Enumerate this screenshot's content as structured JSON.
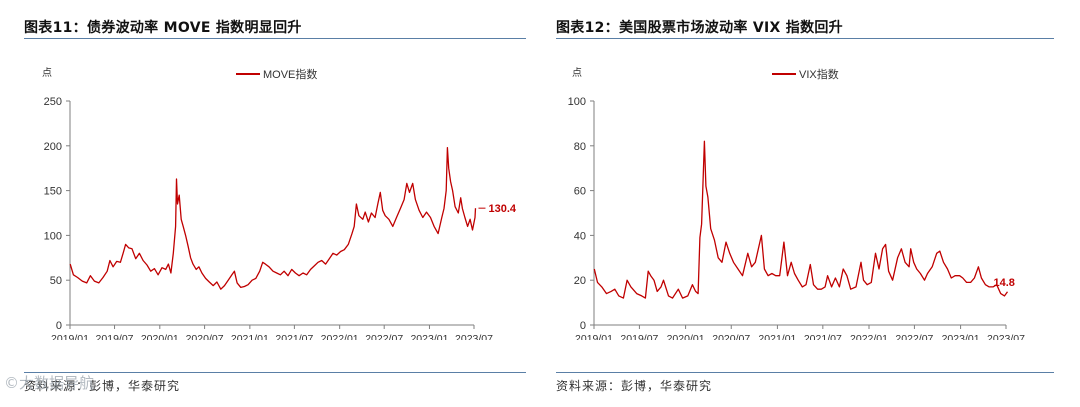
{
  "chart_data": [
    {
      "figure_label": "图表11：",
      "title": "债券波动率 MOVE 指数明显回升",
      "type": "line",
      "unit_label": "点",
      "legend": "MOVE指数",
      "series": [
        {
          "name": "MOVE指数"
        }
      ],
      "ylim": [
        0,
        250
      ],
      "yticks": [
        0,
        50,
        100,
        150,
        200,
        250
      ],
      "xlim": [
        "2019/01",
        "2023/07"
      ],
      "xticks": [
        "2019/01",
        "2019/07",
        "2020/01",
        "2020/07",
        "2021/01",
        "2021/07",
        "2022/01",
        "2022/07",
        "2023/01",
        "2023/07"
      ],
      "end_label": "130.4",
      "color": "#c00000",
      "points": [
        [
          "2019/01/02",
          68
        ],
        [
          "2019/01/15",
          56
        ],
        [
          "2019/02/01",
          53
        ],
        [
          "2019/02/20",
          49
        ],
        [
          "2019/03/10",
          47
        ],
        [
          "2019/03/25",
          55
        ],
        [
          "2019/04/10",
          49
        ],
        [
          "2019/04/28",
          47
        ],
        [
          "2019/05/15",
          53
        ],
        [
          "2019/06/01",
          60
        ],
        [
          "2019/06/12",
          72
        ],
        [
          "2019/06/25",
          65
        ],
        [
          "2019/07/10",
          71
        ],
        [
          "2019/07/25",
          70
        ],
        [
          "2019/08/05",
          80
        ],
        [
          "2019/08/15",
          90
        ],
        [
          "2019/08/28",
          86
        ],
        [
          "2019/09/10",
          85
        ],
        [
          "2019/09/25",
          74
        ],
        [
          "2019/10/10",
          80
        ],
        [
          "2019/10/25",
          72
        ],
        [
          "2019/11/10",
          67
        ],
        [
          "2019/11/25",
          60
        ],
        [
          "2019/12/10",
          63
        ],
        [
          "2019/12/25",
          56
        ],
        [
          "2020/01/10",
          64
        ],
        [
          "2020/01/25",
          62
        ],
        [
          "2020/02/05",
          68
        ],
        [
          "2020/02/15",
          58
        ],
        [
          "2020/02/25",
          80
        ],
        [
          "2020/03/05",
          110
        ],
        [
          "2020/03/09",
          163
        ],
        [
          "2020/03/13",
          135
        ],
        [
          "2020/03/20",
          145
        ],
        [
          "2020/03/28",
          118
        ],
        [
          "2020/04/05",
          110
        ],
        [
          "2020/04/15",
          100
        ],
        [
          "2020/04/25",
          88
        ],
        [
          "2020/05/05",
          75
        ],
        [
          "2020/05/15",
          68
        ],
        [
          "2020/05/28",
          62
        ],
        [
          "2020/06/08",
          65
        ],
        [
          "2020/06/20",
          58
        ],
        [
          "2020/07/05",
          52
        ],
        [
          "2020/07/20",
          48
        ],
        [
          "2020/08/05",
          44
        ],
        [
          "2020/08/20",
          48
        ],
        [
          "2020/09/05",
          40
        ],
        [
          "2020/09/20",
          44
        ],
        [
          "2020/10/05",
          50
        ],
        [
          "2020/10/20",
          56
        ],
        [
          "2020/10/30",
          60
        ],
        [
          "2020/11/10",
          47
        ],
        [
          "2020/11/25",
          42
        ],
        [
          "2020/12/10",
          43
        ],
        [
          "2020/12/25",
          45
        ],
        [
          "2021/01/10",
          50
        ],
        [
          "2021/01/25",
          52
        ],
        [
          "2021/02/10",
          60
        ],
        [
          "2021/02/22",
          70
        ],
        [
          "2021/03/05",
          68
        ],
        [
          "2021/03/20",
          65
        ],
        [
          "2021/04/05",
          60
        ],
        [
          "2021/04/20",
          58
        ],
        [
          "2021/05/05",
          56
        ],
        [
          "2021/05/20",
          60
        ],
        [
          "2021/06/05",
          55
        ],
        [
          "2021/06/20",
          62
        ],
        [
          "2021/07/05",
          58
        ],
        [
          "2021/07/20",
          55
        ],
        [
          "2021/08/05",
          58
        ],
        [
          "2021/08/20",
          56
        ],
        [
          "2021/09/05",
          62
        ],
        [
          "2021/09/20",
          66
        ],
        [
          "2021/10/05",
          70
        ],
        [
          "2021/10/20",
          72
        ],
        [
          "2021/11/05",
          68
        ],
        [
          "2021/11/20",
          74
        ],
        [
          "2021/12/05",
          80
        ],
        [
          "2021/12/20",
          78
        ],
        [
          "2022/01/05",
          82
        ],
        [
          "2022/01/20",
          84
        ],
        [
          "2022/02/05",
          90
        ],
        [
          "2022/02/20",
          102
        ],
        [
          "2022/03/01",
          110
        ],
        [
          "2022/03/10",
          135
        ],
        [
          "2022/03/20",
          122
        ],
        [
          "2022/04/05",
          118
        ],
        [
          "2022/04/15",
          126
        ],
        [
          "2022/04/28",
          115
        ],
        [
          "2022/05/10",
          125
        ],
        [
          "2022/05/25",
          120
        ],
        [
          "2022/06/05",
          135
        ],
        [
          "2022/06/15",
          148
        ],
        [
          "2022/06/25",
          128
        ],
        [
          "2022/07/05",
          122
        ],
        [
          "2022/07/20",
          118
        ],
        [
          "2022/08/05",
          110
        ],
        [
          "2022/08/20",
          120
        ],
        [
          "2022/09/05",
          130
        ],
        [
          "2022/09/20",
          140
        ],
        [
          "2022/10/01",
          158
        ],
        [
          "2022/10/12",
          148
        ],
        [
          "2022/10/25",
          158
        ],
        [
          "2022/11/05",
          140
        ],
        [
          "2022/11/20",
          128
        ],
        [
          "2022/12/05",
          120
        ],
        [
          "2022/12/20",
          126
        ],
        [
          "2023/01/05",
          120
        ],
        [
          "2023/01/20",
          110
        ],
        [
          "2023/02/05",
          102
        ],
        [
          "2023/02/20",
          120
        ],
        [
          "2023/03/01",
          130
        ],
        [
          "2023/03/10",
          150
        ],
        [
          "2023/03/15",
          198
        ],
        [
          "2023/03/20",
          175
        ],
        [
          "2023/03/28",
          160
        ],
        [
          "2023/04/05",
          150
        ],
        [
          "2023/04/15",
          132
        ],
        [
          "2023/04/28",
          125
        ],
        [
          "2023/05/08",
          142
        ],
        [
          "2023/05/15",
          130
        ],
        [
          "2023/05/25",
          120
        ],
        [
          "2023/06/05",
          110
        ],
        [
          "2023/06/15",
          118
        ],
        [
          "2023/06/25",
          106
        ],
        [
          "2023/07/05",
          120
        ],
        [
          "2023/07/07",
          130.4
        ]
      ]
    },
    {
      "figure_label": "图表12：",
      "title": "美国股票市场波动率 VIX 指数回升",
      "type": "line",
      "unit_label": "点",
      "legend": "VIX指数",
      "series": [
        {
          "name": "VIX指数"
        }
      ],
      "ylim": [
        0,
        100
      ],
      "yticks": [
        0,
        20,
        40,
        60,
        80,
        100
      ],
      "xlim": [
        "2019/01",
        "2023/07"
      ],
      "xticks": [
        "2019/01",
        "2019/07",
        "2020/01",
        "2020/07",
        "2021/01",
        "2021/07",
        "2022/01",
        "2022/07",
        "2023/01",
        "2023/07"
      ],
      "end_label": "14.8",
      "color": "#c00000",
      "points": [
        [
          "2019/01/02",
          25
        ],
        [
          "2019/01/15",
          19
        ],
        [
          "2019/02/01",
          17
        ],
        [
          "2019/02/20",
          14
        ],
        [
          "2019/03/10",
          15
        ],
        [
          "2019/03/25",
          16
        ],
        [
          "2019/04/10",
          13
        ],
        [
          "2019/04/28",
          12
        ],
        [
          "2019/05/13",
          20
        ],
        [
          "2019/05/28",
          17
        ],
        [
          "2019/06/05",
          16
        ],
        [
          "2019/06/20",
          14
        ],
        [
          "2019/07/10",
          13
        ],
        [
          "2019/07/25",
          12
        ],
        [
          "2019/08/05",
          24
        ],
        [
          "2019/08/15",
          22
        ],
        [
          "2019/08/28",
          20
        ],
        [
          "2019/09/10",
          15
        ],
        [
          "2019/09/25",
          17
        ],
        [
          "2019/10/05",
          20
        ],
        [
          "2019/10/25",
          13
        ],
        [
          "2019/11/10",
          12
        ],
        [
          "2019/12/03",
          16
        ],
        [
          "2019/12/20",
          12
        ],
        [
          "2020/01/10",
          13
        ],
        [
          "2020/01/28",
          18
        ],
        [
          "2020/02/10",
          15
        ],
        [
          "2020/02/20",
          14
        ],
        [
          "2020/02/27",
          39
        ],
        [
          "2020/03/05",
          45
        ],
        [
          "2020/03/16",
          82
        ],
        [
          "2020/03/22",
          62
        ],
        [
          "2020/03/30",
          57
        ],
        [
          "2020/04/10",
          43
        ],
        [
          "2020/04/25",
          38
        ],
        [
          "2020/05/10",
          30
        ],
        [
          "2020/05/25",
          28
        ],
        [
          "2020/06/10",
          37
        ],
        [
          "2020/06/25",
          32
        ],
        [
          "2020/07/10",
          28
        ],
        [
          "2020/07/28",
          25
        ],
        [
          "2020/08/15",
          22
        ],
        [
          "2020/09/05",
          32
        ],
        [
          "2020/09/20",
          26
        ],
        [
          "2020/10/05",
          28
        ],
        [
          "2020/10/29",
          40
        ],
        [
          "2020/11/10",
          25
        ],
        [
          "2020/11/25",
          22
        ],
        [
          "2020/12/10",
          23
        ],
        [
          "2020/12/25",
          22
        ],
        [
          "2021/01/10",
          22
        ],
        [
          "2021/01/27",
          37
        ],
        [
          "2021/02/10",
          22
        ],
        [
          "2021/02/25",
          28
        ],
        [
          "2021/03/10",
          23
        ],
        [
          "2021/03/25",
          20
        ],
        [
          "2021/04/10",
          17
        ],
        [
          "2021/04/25",
          18
        ],
        [
          "2021/05/12",
          27
        ],
        [
          "2021/05/25",
          18
        ],
        [
          "2021/06/10",
          16
        ],
        [
          "2021/06/25",
          16
        ],
        [
          "2021/07/10",
          17
        ],
        [
          "2021/07/20",
          22
        ],
        [
          "2021/08/05",
          17
        ],
        [
          "2021/08/20",
          21
        ],
        [
          "2021/09/05",
          17
        ],
        [
          "2021/09/20",
          25
        ],
        [
          "2021/10/05",
          22
        ],
        [
          "2021/10/20",
          16
        ],
        [
          "2021/11/10",
          17
        ],
        [
          "2021/11/30",
          28
        ],
        [
          "2021/12/10",
          20
        ],
        [
          "2021/12/25",
          18
        ],
        [
          "2022/01/10",
          19
        ],
        [
          "2022/01/27",
          32
        ],
        [
          "2022/02/10",
          25
        ],
        [
          "2022/02/24",
          34
        ],
        [
          "2022/03/08",
          36
        ],
        [
          "2022/03/20",
          24
        ],
        [
          "2022/04/05",
          20
        ],
        [
          "2022/04/25",
          30
        ],
        [
          "2022/05/10",
          34
        ],
        [
          "2022/05/25",
          28
        ],
        [
          "2022/06/10",
          26
        ],
        [
          "2022/06/16",
          34
        ],
        [
          "2022/06/28",
          28
        ],
        [
          "2022/07/10",
          25
        ],
        [
          "2022/07/25",
          23
        ],
        [
          "2022/08/10",
          20
        ],
        [
          "2022/08/22",
          23
        ],
        [
          "2022/09/10",
          26
        ],
        [
          "2022/09/28",
          32
        ],
        [
          "2022/10/10",
          33
        ],
        [
          "2022/10/25",
          28
        ],
        [
          "2022/11/10",
          25
        ],
        [
          "2022/11/25",
          21
        ],
        [
          "2022/12/10",
          22
        ],
        [
          "2022/12/28",
          22
        ],
        [
          "2023/01/10",
          21
        ],
        [
          "2023/01/25",
          19
        ],
        [
          "2023/02/10",
          19
        ],
        [
          "2023/02/25",
          21
        ],
        [
          "2023/03/13",
          26
        ],
        [
          "2023/03/25",
          21
        ],
        [
          "2023/04/10",
          18
        ],
        [
          "2023/04/25",
          17
        ],
        [
          "2023/05/10",
          17
        ],
        [
          "2023/05/25",
          18
        ],
        [
          "2023/06/10",
          14
        ],
        [
          "2023/06/25",
          13
        ],
        [
          "2023/07/07",
          14.8
        ]
      ]
    }
  ],
  "sources": [
    "资料来源：彭博，华泰研究",
    "资料来源：彭博，华泰研究"
  ],
  "watermark": "©大数据导航"
}
